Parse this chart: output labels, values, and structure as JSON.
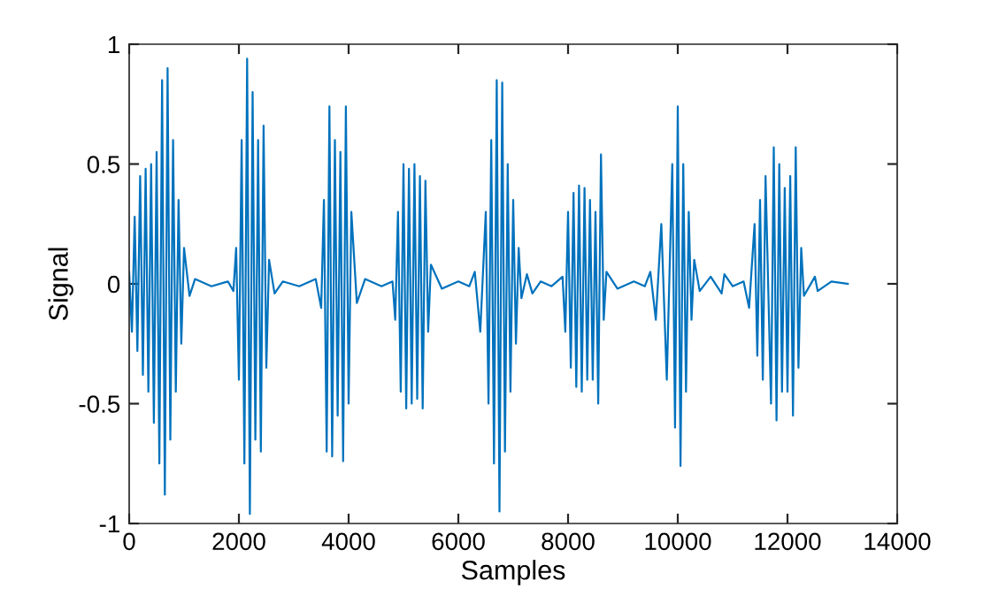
{
  "chart_data": {
    "type": "line",
    "xlabel": "Samples",
    "ylabel": "Signal",
    "xlim": [
      0,
      14000
    ],
    "xticks": [
      0,
      2000,
      4000,
      6000,
      8000,
      10000,
      12000,
      14000
    ],
    "ylim": [
      -1,
      1
    ],
    "yticks": [
      -1,
      -0.5,
      0,
      0.5,
      1
    ],
    "grid": false,
    "legend": false,
    "marker": "none",
    "line_style": "solid",
    "series": [
      {
        "color": "#0072bd",
        "x": [
          0,
          50,
          100,
          150,
          200,
          250,
          300,
          350,
          400,
          450,
          500,
          550,
          600,
          650,
          700,
          750,
          800,
          850,
          900,
          950,
          1000,
          1100,
          1200,
          1500,
          1800,
          1900,
          1950,
          2000,
          2050,
          2100,
          2150,
          2200,
          2250,
          2300,
          2350,
          2400,
          2450,
          2500,
          2550,
          2650,
          2800,
          3100,
          3400,
          3500,
          3550,
          3600,
          3650,
          3700,
          3750,
          3800,
          3850,
          3900,
          3950,
          4000,
          4050,
          4150,
          4300,
          4600,
          4800,
          4850,
          4900,
          4950,
          5000,
          5050,
          5100,
          5150,
          5200,
          5250,
          5300,
          5350,
          5400,
          5450,
          5500,
          5700,
          6000,
          6200,
          6300,
          6400,
          6500,
          6550,
          6600,
          6650,
          6700,
          6750,
          6800,
          6850,
          6900,
          6950,
          7000,
          7050,
          7100,
          7150,
          7250,
          7350,
          7500,
          7700,
          7900,
          7950,
          8000,
          8050,
          8100,
          8150,
          8200,
          8250,
          8300,
          8350,
          8400,
          8450,
          8500,
          8550,
          8600,
          8650,
          8700,
          8900,
          9200,
          9400,
          9500,
          9600,
          9700,
          9800,
          9900,
          9950,
          10000,
          10050,
          10100,
          10150,
          10200,
          10250,
          10300,
          10400,
          10600,
          10800,
          10850,
          11000,
          11200,
          11300,
          11400,
          11450,
          11500,
          11550,
          11600,
          11700,
          11750,
          11800,
          11850,
          11900,
          11950,
          12000,
          12050,
          12100,
          12150,
          12200,
          12250,
          12300,
          12500,
          12550,
          12800,
          13100
        ],
        "values": [
          0.05,
          -0.2,
          0.28,
          -0.28,
          0.45,
          -0.38,
          0.48,
          -0.45,
          0.5,
          -0.58,
          0.55,
          -0.75,
          0.85,
          -0.88,
          0.9,
          -0.65,
          0.6,
          -0.45,
          0.35,
          -0.25,
          0.15,
          -0.05,
          0.02,
          -0.01,
          0.01,
          -0.03,
          0.15,
          -0.4,
          0.6,
          -0.75,
          0.94,
          -0.96,
          0.8,
          -0.65,
          0.6,
          -0.7,
          0.66,
          -0.35,
          0.1,
          -0.04,
          0.01,
          -0.01,
          0.02,
          -0.1,
          0.35,
          -0.7,
          0.74,
          -0.72,
          0.6,
          -0.55,
          0.55,
          -0.74,
          0.74,
          -0.5,
          0.3,
          -0.08,
          0.02,
          -0.01,
          0.01,
          -0.15,
          0.3,
          -0.45,
          0.5,
          -0.52,
          0.48,
          -0.5,
          0.5,
          -0.48,
          0.45,
          -0.52,
          0.43,
          -0.2,
          0.08,
          -0.02,
          0.01,
          -0.01,
          0.05,
          -0.2,
          0.3,
          -0.5,
          0.6,
          -0.75,
          0.85,
          -0.95,
          0.84,
          -0.7,
          0.5,
          -0.45,
          0.35,
          -0.25,
          0.15,
          -0.06,
          0.04,
          -0.04,
          0.01,
          -0.01,
          0.03,
          -0.2,
          0.3,
          -0.35,
          0.38,
          -0.43,
          0.41,
          -0.45,
          0.4,
          -0.4,
          0.35,
          -0.4,
          0.3,
          -0.5,
          0.54,
          -0.15,
          0.05,
          -0.02,
          0.01,
          -0.01,
          0.05,
          -0.15,
          0.25,
          -0.4,
          0.5,
          -0.6,
          0.74,
          -0.76,
          0.5,
          -0.45,
          0.3,
          -0.15,
          0.1,
          -0.03,
          0.03,
          -0.04,
          0.04,
          -0.01,
          0.01,
          -0.1,
          0.25,
          -0.3,
          0.35,
          -0.4,
          0.45,
          -0.5,
          0.57,
          -0.57,
          0.5,
          -0.45,
          0.4,
          -0.45,
          0.45,
          -0.55,
          0.57,
          -0.35,
          0.15,
          -0.05,
          0.03,
          -0.03,
          0.01,
          0
        ]
      }
    ]
  }
}
